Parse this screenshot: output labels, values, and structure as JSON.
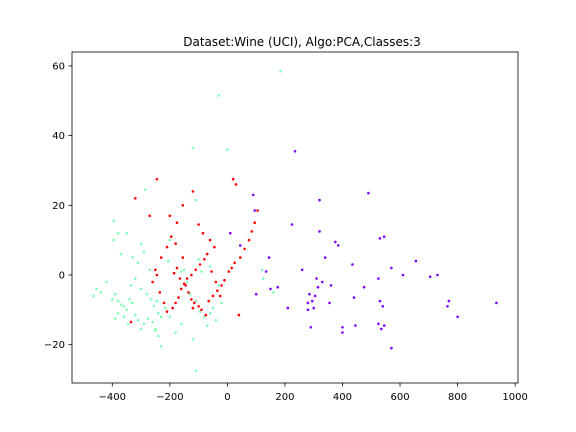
{
  "chart_data": {
    "type": "scatter",
    "title": "Dataset:Wine (UCI), Algo:PCA,Classes:3",
    "xlabel": "",
    "ylabel": "",
    "xlim": [
      -540,
      1010
    ],
    "ylim": [
      -31,
      64
    ],
    "xticks": [
      -400,
      -200,
      0,
      200,
      400,
      600,
      800,
      1000
    ],
    "yticks": [
      -20,
      0,
      20,
      40,
      60
    ],
    "xtick_labels": [
      "−400",
      "−200",
      "0",
      "200",
      "400",
      "600",
      "800",
      "1000"
    ],
    "ytick_labels": [
      "−20",
      "0",
      "20",
      "40",
      "60"
    ],
    "grid": false,
    "legend": "none",
    "series": [
      {
        "color": "#8000ff",
        "points": [
          [
            935,
            -8
          ],
          [
            800,
            -12
          ],
          [
            770,
            -7.5
          ],
          [
            765,
            -9
          ],
          [
            730,
            0
          ],
          [
            705,
            -0.5
          ],
          [
            655,
            4
          ],
          [
            610,
            0
          ],
          [
            570,
            2
          ],
          [
            570,
            -21
          ],
          [
            545,
            -14.5
          ],
          [
            545,
            11
          ],
          [
            540,
            -9
          ],
          [
            535,
            -15.5
          ],
          [
            530,
            10.5
          ],
          [
            530,
            -7.5
          ],
          [
            525,
            -1
          ],
          [
            525,
            -14
          ],
          [
            490,
            23.5
          ],
          [
            475,
            -3.5
          ],
          [
            445,
            -14.5
          ],
          [
            440,
            -6.5
          ],
          [
            435,
            3
          ],
          [
            400,
            -16.5
          ],
          [
            400,
            -15
          ],
          [
            385,
            8.5
          ],
          [
            375,
            9.5
          ],
          [
            360,
            -3
          ],
          [
            355,
            -8
          ],
          [
            340,
            5
          ],
          [
            330,
            -2
          ],
          [
            320,
            21.5
          ],
          [
            320,
            12.5
          ],
          [
            315,
            -3.5
          ],
          [
            310,
            -1
          ],
          [
            305,
            -6
          ],
          [
            300,
            -9.5
          ],
          [
            295,
            -7.5
          ],
          [
            290,
            -15
          ],
          [
            285,
            -5.5
          ],
          [
            280,
            -8
          ],
          [
            280,
            -10
          ],
          [
            260,
            1.5
          ],
          [
            235,
            35.5
          ],
          [
            225,
            14.5
          ],
          [
            210,
            -9.5
          ],
          [
            175,
            -3.5
          ],
          [
            150,
            -4
          ],
          [
            145,
            5
          ],
          [
            135,
            1
          ],
          [
            100,
            -5.5
          ],
          [
            95,
            18.5
          ],
          [
            90,
            23
          ],
          [
            45,
            8.5
          ],
          [
            10,
            12
          ]
        ]
      },
      {
        "color": "#80ffb4",
        "points": [
          [
            185,
            58.5
          ],
          [
            -30,
            51.5
          ],
          [
            0,
            36
          ],
          [
            -120,
            36.5
          ],
          [
            -110,
            21.5
          ],
          [
            -285,
            24.5
          ],
          [
            -395,
            15.5
          ],
          [
            -380,
            12
          ],
          [
            -395,
            10
          ],
          [
            -370,
            6
          ],
          [
            -350,
            12
          ],
          [
            -330,
            5
          ],
          [
            -310,
            3.5
          ],
          [
            -290,
            6.5
          ],
          [
            -270,
            1.5
          ],
          [
            -320,
            -1
          ],
          [
            -335,
            -3
          ],
          [
            -300,
            -4
          ],
          [
            -280,
            -5.5
          ],
          [
            -265,
            -7
          ],
          [
            -255,
            -9
          ],
          [
            -245,
            -7.5
          ],
          [
            -240,
            -11
          ],
          [
            -230,
            -12
          ],
          [
            -215,
            -9.5
          ],
          [
            -205,
            4
          ],
          [
            -200,
            10
          ],
          [
            -180,
            9
          ],
          [
            -160,
            1
          ],
          [
            -140,
            -2
          ],
          [
            -130,
            -5.5
          ],
          [
            -110,
            -7.5
          ],
          [
            -95,
            -10.5
          ],
          [
            -80,
            -12
          ],
          [
            -70,
            -14.5
          ],
          [
            -60,
            -11
          ],
          [
            -50,
            -9.5
          ],
          [
            -40,
            -13
          ],
          [
            -30,
            -3
          ],
          [
            -20,
            -8
          ],
          [
            -180,
            -16.5
          ],
          [
            -160,
            -14
          ],
          [
            -250,
            -15.5
          ],
          [
            -240,
            -17.5
          ],
          [
            -200,
            -12
          ],
          [
            -120,
            -18.5
          ],
          [
            -110,
            -27.5
          ],
          [
            -420,
            -2
          ],
          [
            -440,
            -5
          ],
          [
            -455,
            -4
          ],
          [
            -465,
            -6
          ],
          [
            -400,
            -7
          ],
          [
            -390,
            -5.5
          ],
          [
            -380,
            -7.5
          ],
          [
            -370,
            -8.5
          ],
          [
            -360,
            -9
          ],
          [
            -350,
            -10
          ],
          [
            -340,
            -7
          ],
          [
            -330,
            -8
          ],
          [
            -320,
            -11.5
          ],
          [
            -380,
            -11
          ],
          [
            -390,
            -12.5
          ],
          [
            -360,
            -12
          ],
          [
            -345,
            -14
          ],
          [
            -310,
            -13
          ],
          [
            -300,
            -15.5
          ],
          [
            -290,
            -14
          ],
          [
            -275,
            -12.5
          ],
          [
            -260,
            -13.5
          ],
          [
            -250,
            -16
          ],
          [
            -230,
            -20.5
          ],
          [
            -150,
            1.5
          ],
          [
            -100,
            4.5
          ],
          [
            -90,
            1
          ],
          [
            -60,
            2.5
          ],
          [
            120,
            1.5
          ],
          [
            125,
            -1
          ],
          [
            160,
            -5
          ],
          [
            -300,
            9
          ]
        ]
      },
      {
        "color": "#ff0000",
        "points": [
          [
            -320,
            22
          ],
          [
            -245,
            27.5
          ],
          [
            -270,
            17
          ],
          [
            -200,
            17
          ],
          [
            -155,
            5
          ],
          [
            -175,
            2
          ],
          [
            -185,
            0.5
          ],
          [
            -165,
            -1
          ],
          [
            -145,
            -3
          ],
          [
            -135,
            -5
          ],
          [
            -125,
            -7
          ],
          [
            -115,
            -8
          ],
          [
            -100,
            -9
          ],
          [
            -90,
            -10
          ],
          [
            -75,
            -11.5
          ],
          [
            -65,
            -7.5
          ],
          [
            -50,
            -6
          ],
          [
            -35,
            -4.5
          ],
          [
            -20,
            -3
          ],
          [
            -10,
            -1.5
          ],
          [
            5,
            1
          ],
          [
            15,
            2
          ],
          [
            25,
            3.5
          ],
          [
            45,
            5
          ],
          [
            60,
            7.5
          ],
          [
            75,
            10
          ],
          [
            85,
            12.5
          ],
          [
            95,
            15
          ],
          [
            105,
            18.5
          ],
          [
            20,
            27.5
          ],
          [
            30,
            26
          ],
          [
            -60,
            10
          ],
          [
            -45,
            8
          ],
          [
            -70,
            6
          ],
          [
            -80,
            4.5
          ],
          [
            -95,
            3
          ],
          [
            -110,
            1.5
          ],
          [
            -125,
            0
          ],
          [
            -140,
            -1
          ],
          [
            -150,
            -2.5
          ],
          [
            -160,
            -4
          ],
          [
            -170,
            -6.5
          ],
          [
            -180,
            -8
          ],
          [
            -190,
            -9.5
          ],
          [
            -210,
            -10.5
          ],
          [
            -220,
            -8
          ],
          [
            -235,
            -5
          ],
          [
            -245,
            0
          ],
          [
            -250,
            1.5
          ],
          [
            -260,
            -2
          ],
          [
            -230,
            5
          ],
          [
            -210,
            8
          ],
          [
            -195,
            11
          ],
          [
            -175,
            15
          ],
          [
            -155,
            20
          ],
          [
            -120,
            24
          ],
          [
            -100,
            14.5
          ],
          [
            -85,
            12
          ],
          [
            -55,
            1
          ],
          [
            -40,
            -2
          ],
          [
            -25,
            -6
          ],
          [
            40,
            -11.5
          ],
          [
            -335,
            -13.5
          ],
          [
            -180,
            9
          ],
          [
            -120,
            -9.5
          ]
        ]
      }
    ]
  }
}
